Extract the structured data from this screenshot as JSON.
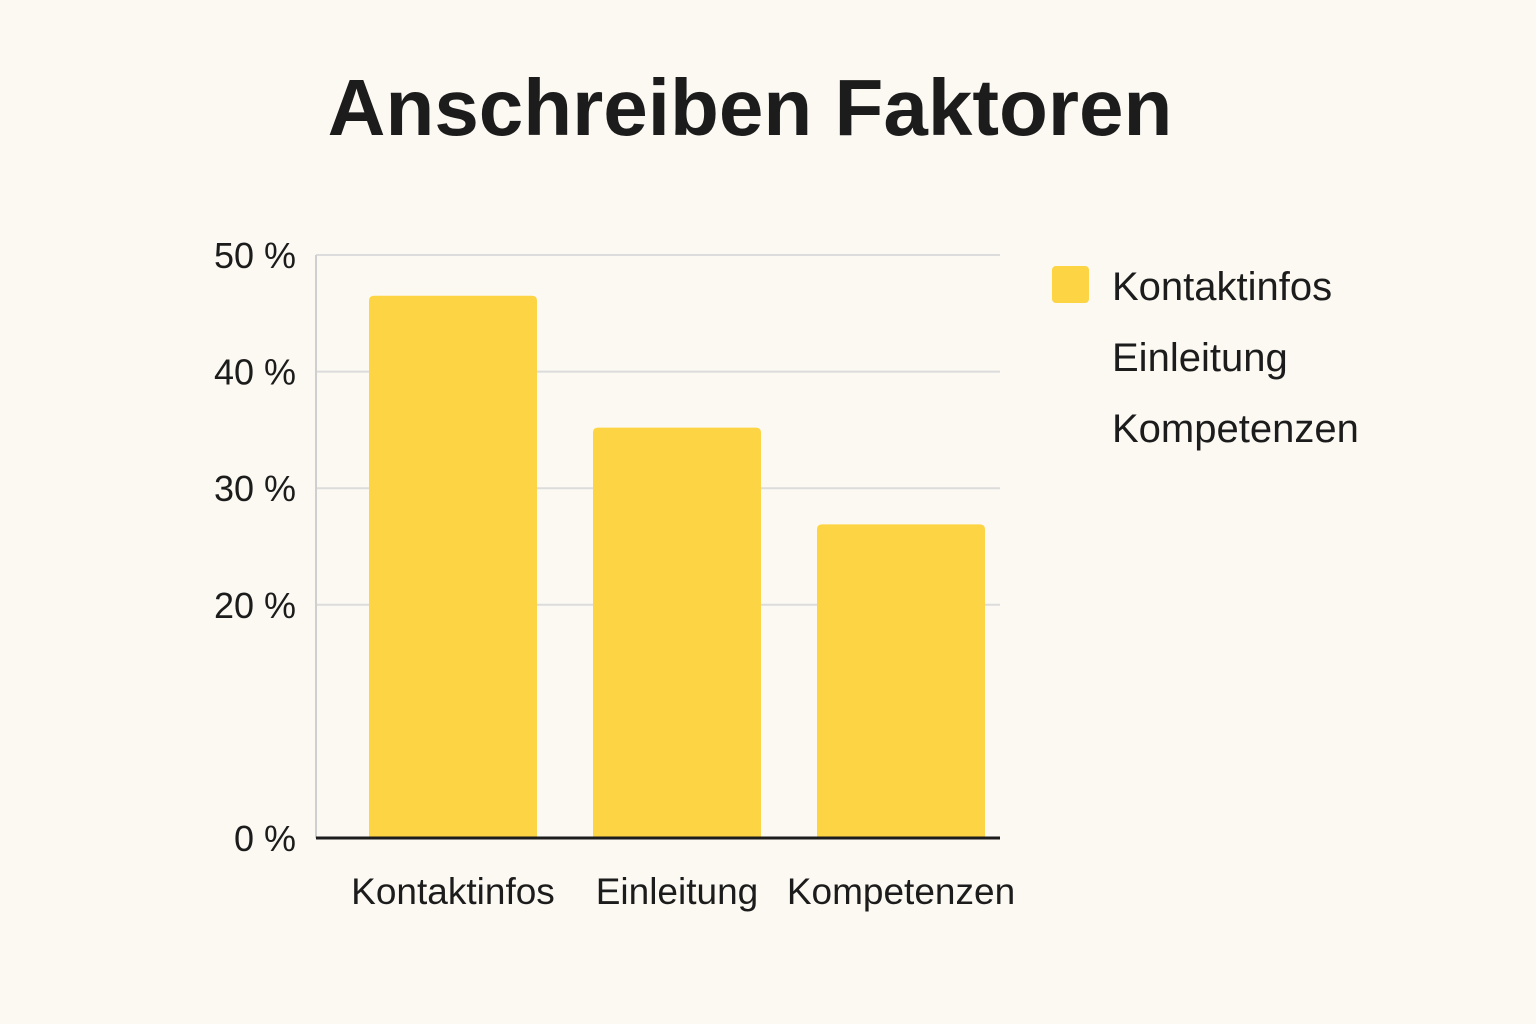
{
  "chart_data": {
    "type": "bar",
    "title": "Anschreiben Faktoren",
    "xlabel": "",
    "ylabel": "",
    "categories": [
      "Kontaktinfos",
      "Einleitung",
      "Kompetenzen"
    ],
    "values": [
      46.5,
      35.2,
      26.9
    ],
    "unit": "%",
    "ylim": [
      0,
      50
    ],
    "yticks": [
      0,
      20,
      30,
      40,
      50
    ],
    "ytick_labels": [
      "0 %",
      "20 %",
      "30 %",
      "40 %",
      "50 %"
    ],
    "grid": true,
    "legend": {
      "position": "right",
      "entries": [
        "Kontaktinfos",
        "Einleitung",
        "Kompetenzen"
      ]
    },
    "colors": {
      "bar": "#fdd443",
      "grid": "#dcdcdc",
      "axis": "#1c1c1c",
      "background": "#fcf9f3"
    }
  }
}
